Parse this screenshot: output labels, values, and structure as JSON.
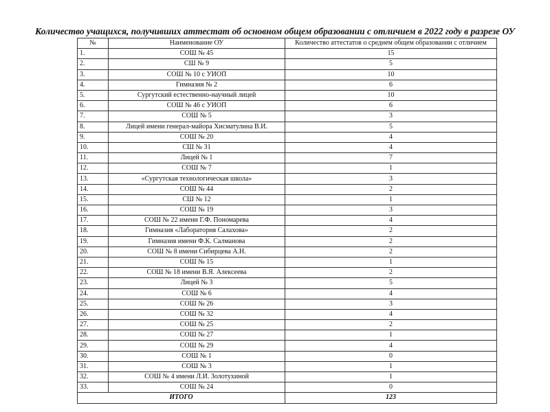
{
  "title": "Количество учащихся, получивших аттестат об основном общем образовании с отличием в 2022 году в разрезе ОУ",
  "table": {
    "headers": [
      "№",
      "Наименование ОУ",
      "Количество аттестатов о среднем общем образовании с отличием"
    ],
    "rows": [
      [
        "1.",
        "СОШ № 45",
        "15"
      ],
      [
        "2.",
        "СШ № 9",
        "5"
      ],
      [
        "3.",
        "СОШ № 10 с УИОП",
        "10"
      ],
      [
        "4.",
        "Гимназия № 2",
        "6"
      ],
      [
        "5.",
        "Сургутский естественно-научный лицей",
        "10"
      ],
      [
        "6.",
        "СОШ № 46 с УИОП",
        "6"
      ],
      [
        "7.",
        "СОШ № 5",
        "3"
      ],
      [
        "8.",
        "Лицей имени генерал-майора Хисматулина В.И.",
        "5"
      ],
      [
        "9.",
        "СОШ № 20",
        "4"
      ],
      [
        "10.",
        "СШ № 31",
        "4"
      ],
      [
        "11.",
        "Лицей № 1",
        "7"
      ],
      [
        "12.",
        "СОШ № 7",
        "1"
      ],
      [
        "13.",
        "«Сургутская технологическая школа»",
        "3"
      ],
      [
        "14.",
        "СОШ № 44",
        "2"
      ],
      [
        "15.",
        "СШ № 12",
        "1"
      ],
      [
        "16.",
        "СОШ № 19",
        "3"
      ],
      [
        "17.",
        "СОШ № 22 имени Г.Ф. Пономарева",
        "4"
      ],
      [
        "18.",
        "Гимназия «Лаборатория Салахова»",
        "2"
      ],
      [
        "19.",
        "Гимназия имени Ф.К. Салманова",
        "2"
      ],
      [
        "20.",
        "СОШ № 8 имени Сибирцева А.Н.",
        "2"
      ],
      [
        "21.",
        "СОШ № 15",
        "1"
      ],
      [
        "22.",
        "СОШ № 18 имени В.Я. Алексеева",
        "2"
      ],
      [
        "23.",
        "Лицей № 3",
        "5"
      ],
      [
        "24.",
        "СОШ № 6",
        "4"
      ],
      [
        "25.",
        "СОШ № 26",
        "3"
      ],
      [
        "26.",
        "СОШ № 32",
        "4"
      ],
      [
        "27.",
        "СОШ № 25",
        "2"
      ],
      [
        "28.",
        "СОШ № 27",
        "1"
      ],
      [
        "29.",
        "СОШ № 29",
        "4"
      ],
      [
        "30.",
        "СОШ № 1",
        "0"
      ],
      [
        "31.",
        "СОШ № 3",
        "1"
      ],
      [
        "32.",
        "СОШ № 4 имени Л.И. Золотухиной",
        "1"
      ],
      [
        "33.",
        "СОШ № 24",
        "0"
      ]
    ],
    "total": {
      "label": "ИТОГО",
      "value": "123"
    }
  }
}
